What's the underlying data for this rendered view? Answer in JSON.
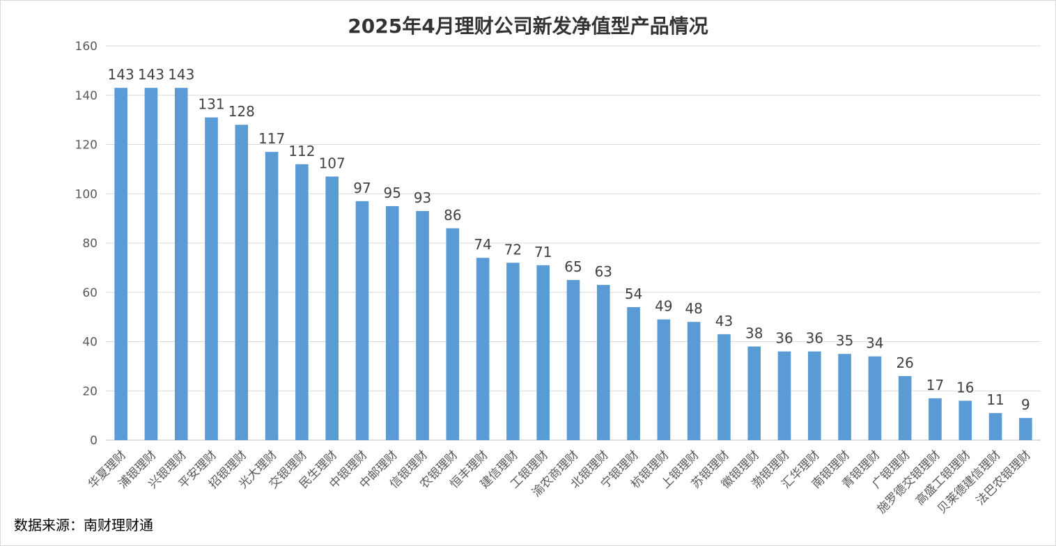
{
  "chart_data": {
    "type": "bar",
    "title": "2025年4月理财公司新发净值型产品情况",
    "categories": [
      "华夏理财",
      "浦银理财",
      "兴银理财",
      "平安理财",
      "招银理财",
      "光大理财",
      "交银理财",
      "民生理财",
      "中银理财",
      "中邮理财",
      "信银理财",
      "农银理财",
      "恒丰理财",
      "建信理财",
      "工银理财",
      "渝农商理财",
      "北银理财",
      "宁银理财",
      "杭银理财",
      "上银理财",
      "苏银理财",
      "徽银理财",
      "渤银理财",
      "汇华理财",
      "南银理财",
      "青银理财",
      "广银理财",
      "施罗德交银理财",
      "高盛工银理财",
      "贝莱德建信理财",
      "法巴农银理财"
    ],
    "values": [
      143,
      143,
      143,
      131,
      128,
      117,
      112,
      107,
      97,
      95,
      93,
      86,
      74,
      72,
      71,
      65,
      63,
      54,
      49,
      48,
      43,
      38,
      36,
      36,
      35,
      34,
      26,
      17,
      16,
      11,
      9
    ],
    "ylim": [
      0,
      160
    ],
    "yticks": [
      0,
      20,
      40,
      60,
      80,
      100,
      120,
      140,
      160
    ],
    "grid": true,
    "bar_color": "#5B9BD5",
    "source": "数据来源：南财理财通"
  }
}
